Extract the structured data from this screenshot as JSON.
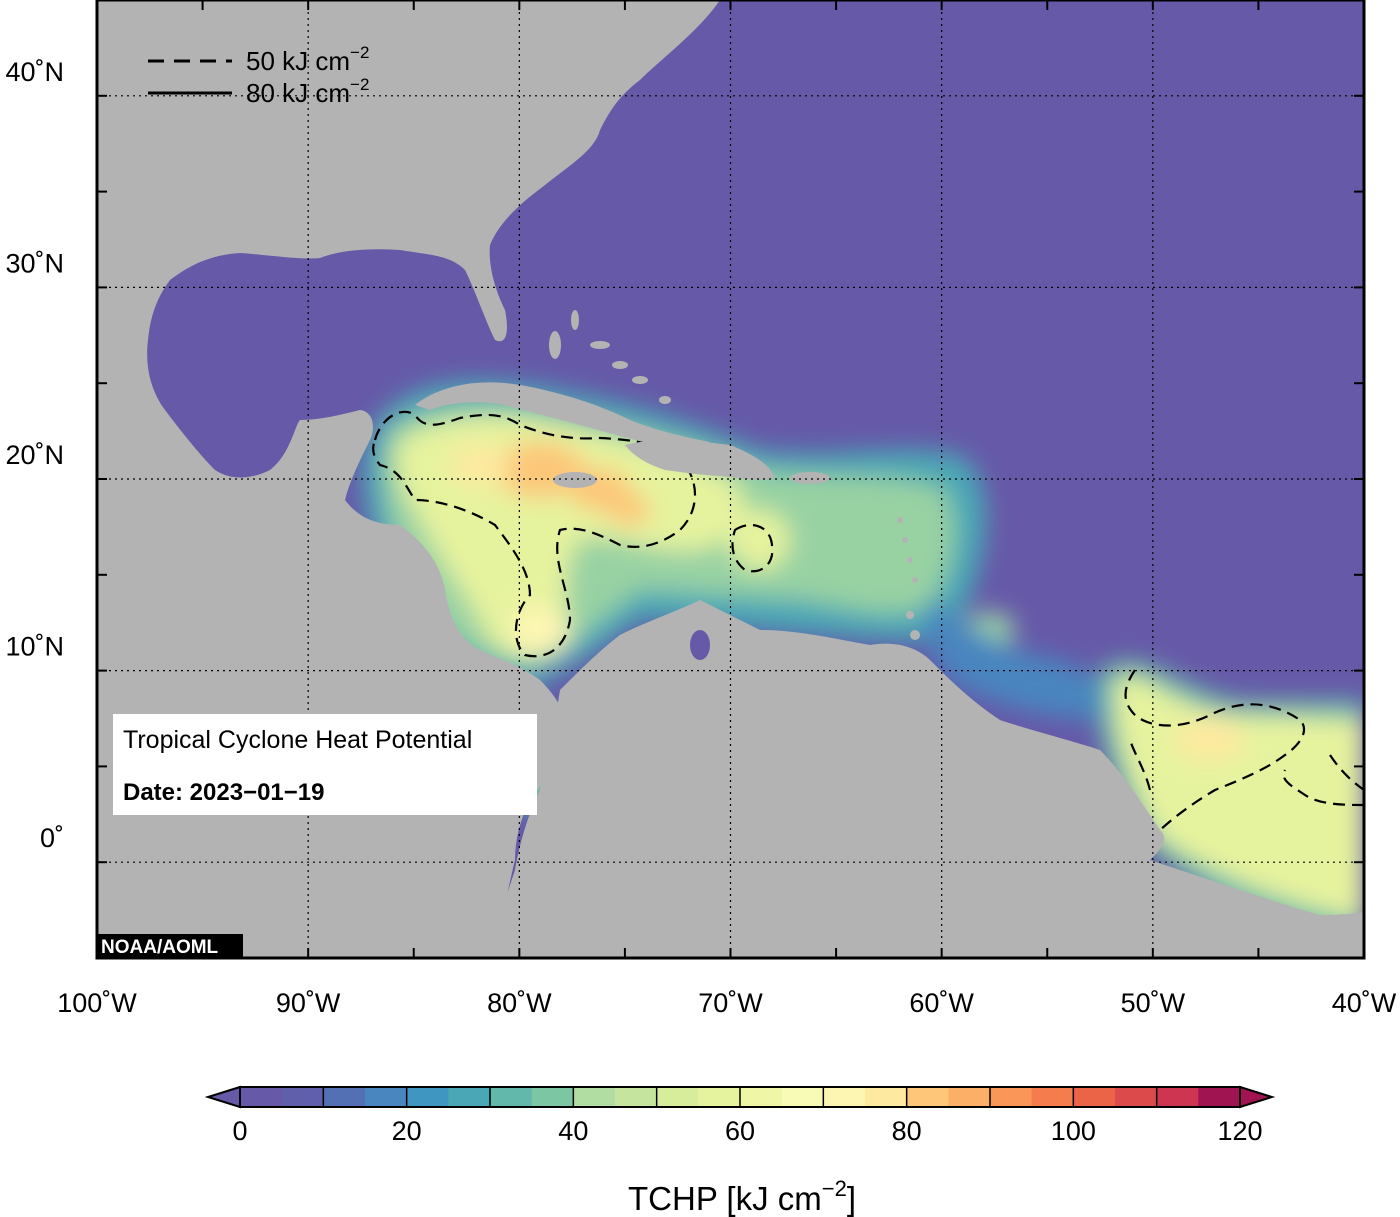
{
  "map": {
    "extent": {
      "lon": [
        -100,
        -40
      ],
      "lat": [
        -5,
        45
      ]
    },
    "lon_ticks": [
      {
        "value": -100,
        "label": "100˚W"
      },
      {
        "value": -90,
        "label": "90˚W"
      },
      {
        "value": -80,
        "label": "80˚W"
      },
      {
        "value": -70,
        "label": "70˚W"
      },
      {
        "value": -60,
        "label": "60˚W"
      },
      {
        "value": -50,
        "label": "50˚W"
      },
      {
        "value": -40,
        "label": "40˚W"
      }
    ],
    "lat_ticks": [
      {
        "value": 40,
        "label": "40˚N"
      },
      {
        "value": 30,
        "label": "30˚N"
      },
      {
        "value": 20,
        "label": "20˚N"
      },
      {
        "value": 10,
        "label": "10˚N"
      },
      {
        "value": 0,
        "label": "0˚"
      }
    ],
    "grid": "dotted",
    "colors": {
      "ocean_low": "#6659a8",
      "land": "#b3b3b3",
      "frame": "#000000"
    }
  },
  "legend": {
    "placement": "top-left",
    "items": [
      {
        "style": "dashed",
        "label": "50 kJ cm",
        "sup": "−2"
      },
      {
        "style": "solid",
        "label": "80 kJ cm",
        "sup": "−2"
      }
    ]
  },
  "infobox": {
    "title": "Tropical Cyclone Heat Potential",
    "date": "Date: 2023−01−19"
  },
  "credit": "NOAA/AOML",
  "colorbar": {
    "ticks": [
      {
        "value": 0,
        "label": "0"
      },
      {
        "value": 20,
        "label": "20"
      },
      {
        "value": 40,
        "label": "40"
      },
      {
        "value": 60,
        "label": "60"
      },
      {
        "value": 80,
        "label": "80"
      },
      {
        "value": 100,
        "label": "100"
      },
      {
        "value": 120,
        "label": "120"
      }
    ],
    "title": "TCHP [kJ cm",
    "title_sup": "−2",
    "title_close": "]",
    "step": 5,
    "min": 0,
    "max": 120,
    "colors": [
      "#6659a8",
      "#5f5fac",
      "#5470b5",
      "#4985bf",
      "#3f96c0",
      "#4aa7b5",
      "#62b8aa",
      "#7dc6a4",
      "#98d2a3",
      "#b1dca2",
      "#c5e59f",
      "#d8ed9c",
      "#e6f39e",
      "#eff7a6",
      "#f8fbb5",
      "#fdf6b3",
      "#fee9a0",
      "#fddc8c",
      "#fdc678",
      "#fcb067",
      "#f99658",
      "#f57c4d",
      "#ec6448",
      "#dd4a4b",
      "#cd3551",
      "#b92354",
      "#a01451"
    ]
  },
  "chart_data": {
    "type": "heatmap",
    "variable": "TCHP",
    "units": "kJ cm−2",
    "date": "2023−01−19",
    "contours": [
      50,
      80
    ],
    "xlim": [
      -100,
      -40
    ],
    "ylim": [
      -5,
      45
    ],
    "color_range": [
      0,
      120
    ]
  }
}
